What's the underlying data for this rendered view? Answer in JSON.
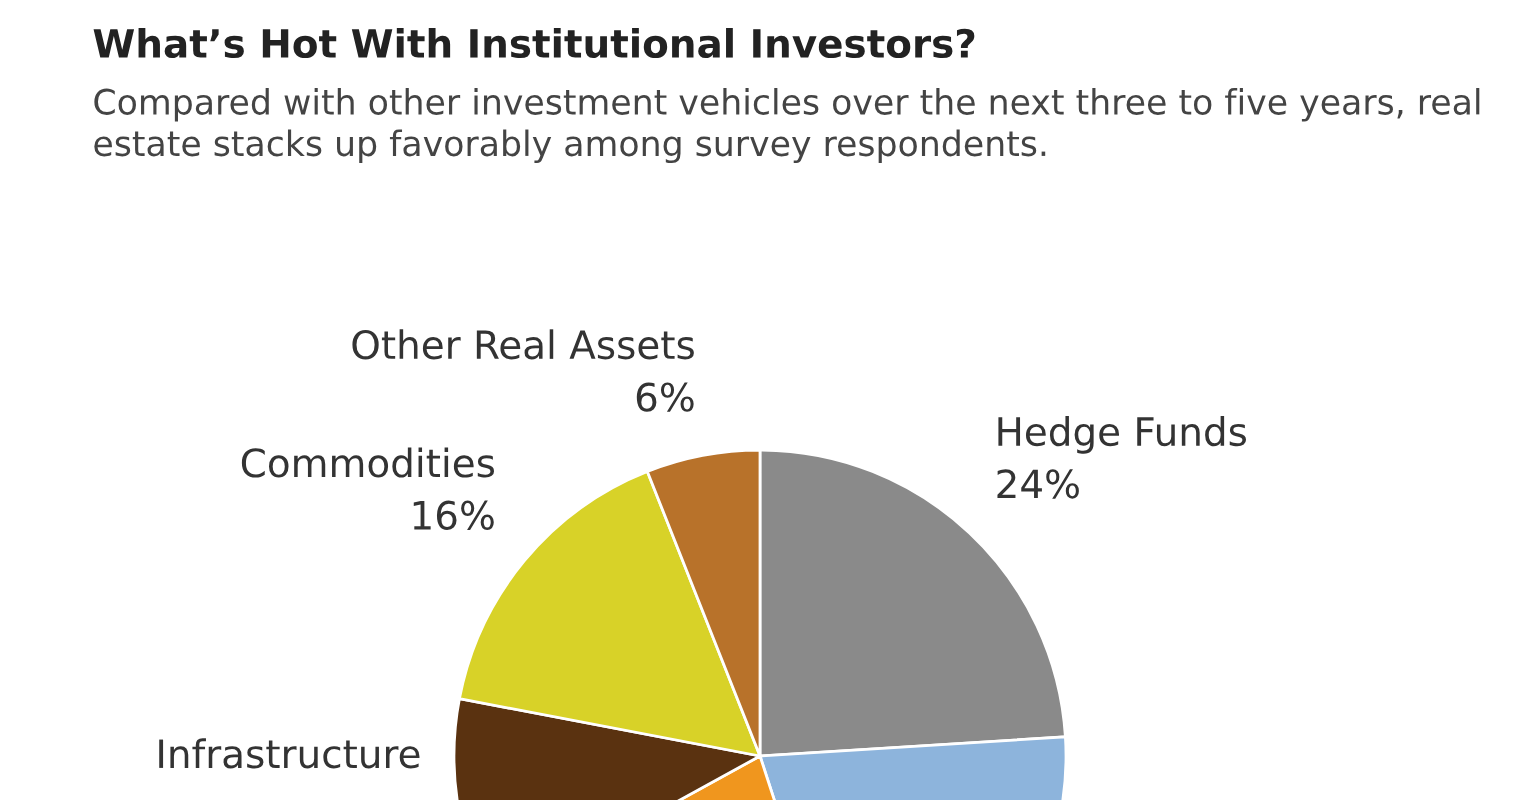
{
  "chart_data": {
    "type": "pie",
    "title": "What’s Hot With Institutional Investors?",
    "subtitle": "Compared with other investment vehicles over the next three to five years, real estate stacks up favorably among survey respondents.",
    "categories": [
      "Hedge Funds",
      null,
      null,
      "Infrastructure",
      "Commodities",
      "Other Real Assets"
    ],
    "values": [
      24,
      21,
      22,
      11,
      16,
      6
    ],
    "value_labels": [
      "24%",
      null,
      null,
      null,
      "16%",
      "6%"
    ],
    "colors": [
      "#8a8a8a",
      "#8db4dc",
      "#f0961e",
      "#5a3210",
      "#d8d228",
      "#b8722a"
    ],
    "legend": false
  }
}
